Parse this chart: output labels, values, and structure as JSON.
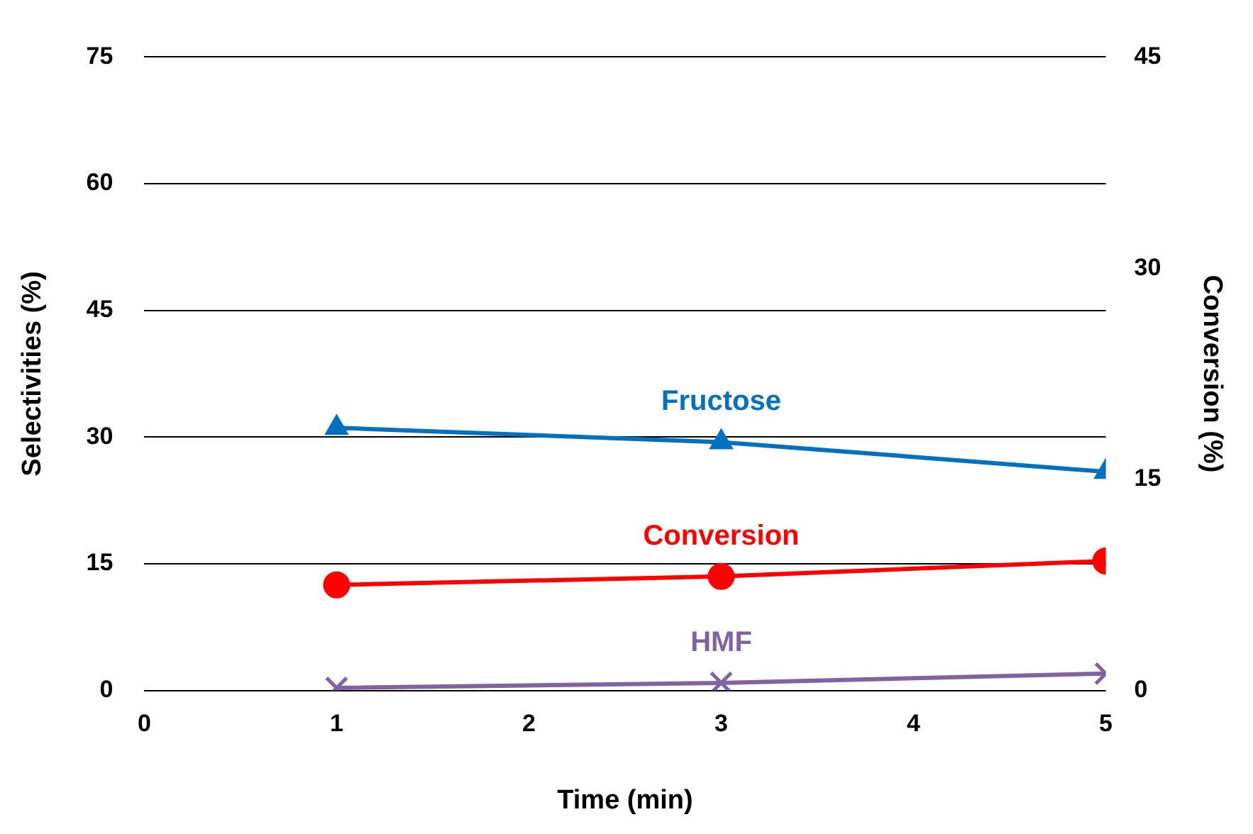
{
  "chart_data": {
    "type": "line",
    "xlabel": "Time (min)",
    "ylabel": "Selectivities (%)",
    "y2label": "Conversion (%)",
    "x": [
      1,
      3,
      5
    ],
    "series": [
      {
        "name": "Fructose",
        "color": "#0070c0",
        "values": [
          31.1,
          29.4,
          25.9
        ],
        "marker": "triangle"
      },
      {
        "name": "Conversion",
        "color": "#ff0000",
        "values": [
          7.5,
          8.1,
          9.2
        ],
        "axis": "y2",
        "marker": "circle"
      },
      {
        "name": "HMF",
        "color": "#8064a2",
        "values": [
          0.3,
          0.9,
          2.0
        ],
        "marker": "cross"
      }
    ],
    "xlim": [
      0,
      5
    ],
    "xticks": [
      0,
      1,
      2,
      3,
      4,
      5
    ],
    "ylim": [
      0,
      75
    ],
    "yticks": [
      0,
      15,
      30,
      45,
      60,
      75
    ],
    "y2lim": [
      0,
      45
    ],
    "y2ticks": [
      0,
      15,
      30,
      45
    ],
    "grid": "y",
    "legend": false,
    "line_style": "solid"
  }
}
